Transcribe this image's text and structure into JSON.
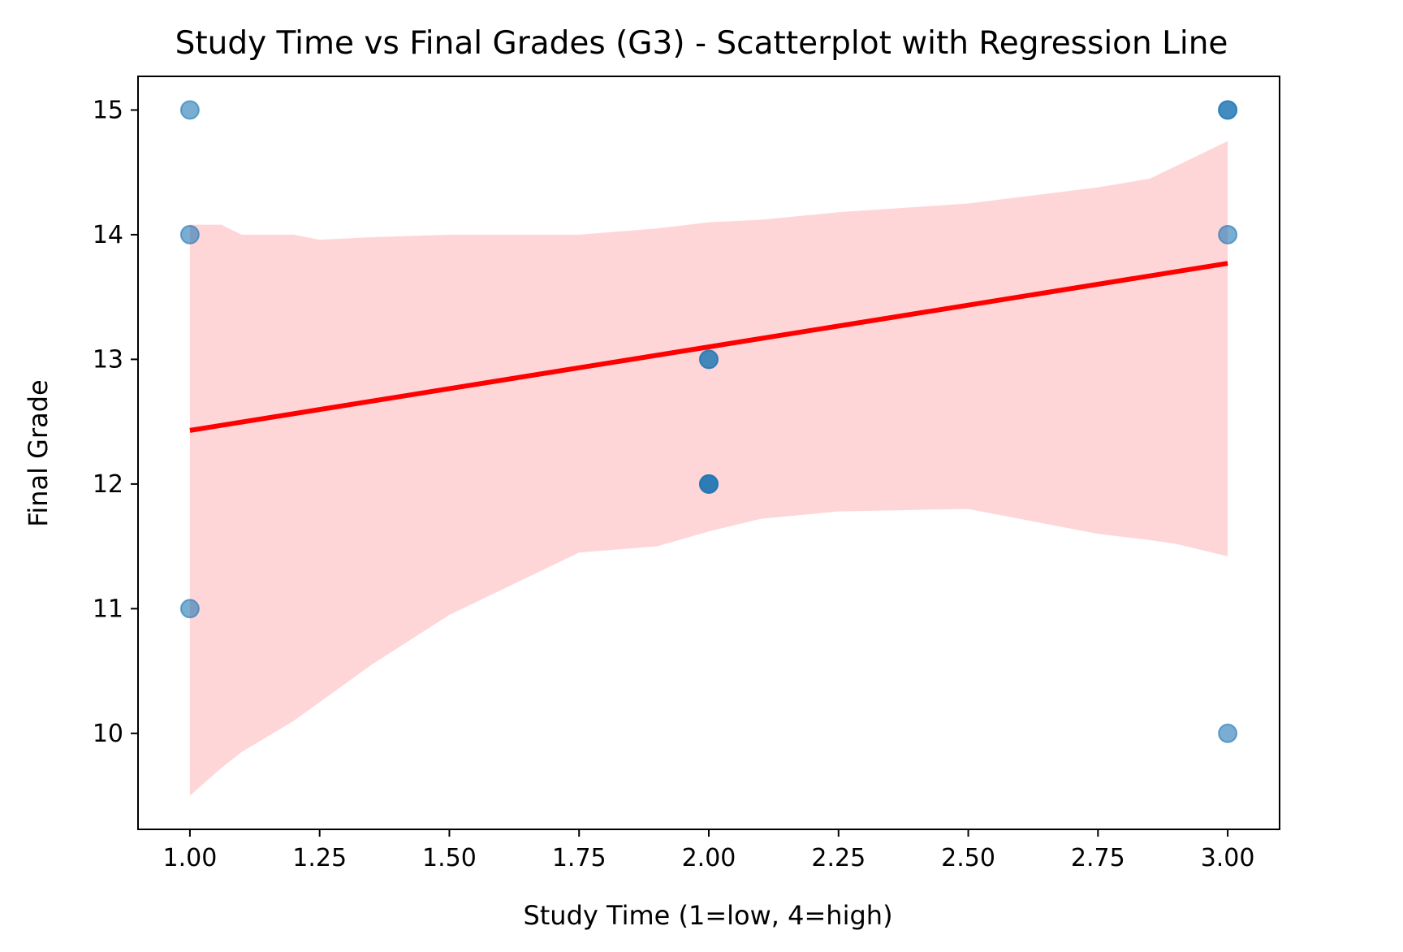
{
  "chart_data": {
    "type": "scatter",
    "title": "Study Time vs Final Grades (G3) - Scatterplot with Regression Line",
    "xlabel": "Study Time (1=low, 4=high)",
    "ylabel": "Final Grade",
    "xlim": [
      0.9,
      3.1
    ],
    "ylim": [
      9.23,
      15.27
    ],
    "xticks": [
      1.0,
      1.25,
      1.5,
      1.75,
      2.0,
      2.25,
      2.5,
      2.75,
      3.0
    ],
    "xtick_labels": [
      "1.00",
      "1.25",
      "1.50",
      "1.75",
      "2.00",
      "2.25",
      "2.50",
      "2.75",
      "3.00"
    ],
    "yticks": [
      10,
      11,
      12,
      13,
      14,
      15
    ],
    "ytick_labels": [
      "10",
      "11",
      "12",
      "13",
      "14",
      "15"
    ],
    "grid": false,
    "points": {
      "x": [
        1,
        1,
        1,
        2,
        2,
        2,
        2,
        2,
        3,
        3,
        3,
        3
      ],
      "y": [
        15,
        14,
        11,
        13,
        13,
        12,
        12,
        12,
        10,
        15,
        15,
        14
      ],
      "color": "#1f77b4",
      "alpha": 0.6
    },
    "regression": {
      "x": [
        1,
        3
      ],
      "y": [
        12.43,
        13.77
      ],
      "color": "#ff0000"
    },
    "confidence_band": {
      "color": "#ffd6d8",
      "x": [
        1.0,
        1.06,
        1.1,
        1.2,
        1.25,
        1.35,
        1.5,
        1.75,
        1.9,
        2.0,
        2.1,
        2.25,
        2.5,
        2.75,
        2.85,
        2.9,
        3.0
      ],
      "upper": [
        14.08,
        14.08,
        14.0,
        14.0,
        13.96,
        13.98,
        14.0,
        14.0,
        14.05,
        14.1,
        14.12,
        14.18,
        14.25,
        14.38,
        14.45,
        14.55,
        14.75
      ],
      "lower": [
        9.5,
        9.72,
        9.85,
        10.1,
        10.25,
        10.55,
        10.95,
        11.45,
        11.5,
        11.62,
        11.72,
        11.78,
        11.8,
        11.6,
        11.55,
        11.52,
        11.42
      ]
    }
  }
}
